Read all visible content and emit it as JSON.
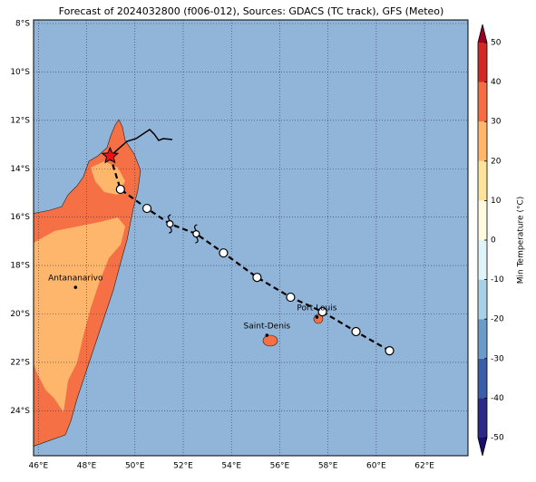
{
  "title": "Forecast of 2024032800 (f006-012), Sources: GDACS (TC track), GFS (Meteo)",
  "map": {
    "lon_range": [
      45.8,
      63.8
    ],
    "lat_range": [
      -7.85,
      -25.86
    ],
    "xticks": [
      {
        "value": 46,
        "label": "46°E"
      },
      {
        "value": 48,
        "label": "48°E"
      },
      {
        "value": 50,
        "label": "50°E"
      },
      {
        "value": 52,
        "label": "52°E"
      },
      {
        "value": 54,
        "label": "54°E"
      },
      {
        "value": 56,
        "label": "56°E"
      },
      {
        "value": 58,
        "label": "58°E"
      },
      {
        "value": 60,
        "label": "60°E"
      },
      {
        "value": 62,
        "label": "62°E"
      }
    ],
    "yticks": [
      {
        "value": -8,
        "label": "8°S"
      },
      {
        "value": -10,
        "label": "10°S"
      },
      {
        "value": -12,
        "label": "12°S"
      },
      {
        "value": -14,
        "label": "14°S"
      },
      {
        "value": -16,
        "label": "16°S"
      },
      {
        "value": -18,
        "label": "18°S"
      },
      {
        "value": -20,
        "label": "20°S"
      },
      {
        "value": -22,
        "label": "22°S"
      },
      {
        "value": -24,
        "label": "24°S"
      }
    ],
    "cities": [
      {
        "name": "Antananarivo",
        "lon": 47.54,
        "lat": -18.9
      },
      {
        "name": "Saint-Denis",
        "lon": 55.47,
        "lat": -20.88
      },
      {
        "name": "Port Louis",
        "lon": 57.54,
        "lat": -20.13
      }
    ],
    "track": [
      {
        "lon": 48.97,
        "lat": -13.47,
        "marker": "star"
      },
      {
        "lon": 49.4,
        "lat": -14.85,
        "marker": "circle"
      },
      {
        "lon": 50.5,
        "lat": -15.64,
        "marker": "circle"
      },
      {
        "lon": 51.45,
        "lat": -16.28,
        "marker": "cyclone"
      },
      {
        "lon": 52.54,
        "lat": -16.69,
        "marker": "cyclone"
      },
      {
        "lon": 53.67,
        "lat": -17.48,
        "marker": "circle"
      },
      {
        "lon": 55.06,
        "lat": -18.49,
        "marker": "circle"
      },
      {
        "lon": 56.45,
        "lat": -19.31,
        "marker": "circle"
      },
      {
        "lon": 57.77,
        "lat": -19.91,
        "marker": "circle"
      },
      {
        "lon": 59.16,
        "lat": -20.73,
        "marker": "circle"
      },
      {
        "lon": 60.55,
        "lat": -21.52,
        "marker": "circle"
      }
    ]
  },
  "colorbar": {
    "label": "Min Temperature (°C)",
    "lim": [
      -50,
      50
    ],
    "ticks": [
      -50,
      -40,
      -30,
      -20,
      -10,
      0,
      10,
      20,
      30,
      40,
      50
    ],
    "colors": [
      "#2b2a87",
      "#3b5ea8",
      "#6a9bc9",
      "#a9d1e6",
      "#e0f3f8",
      "#fffbe0",
      "#fee39c",
      "#fdb66c",
      "#f46d43",
      "#d12a24"
    ],
    "under": "#1a0f6b",
    "over": "#9a0026"
  }
}
